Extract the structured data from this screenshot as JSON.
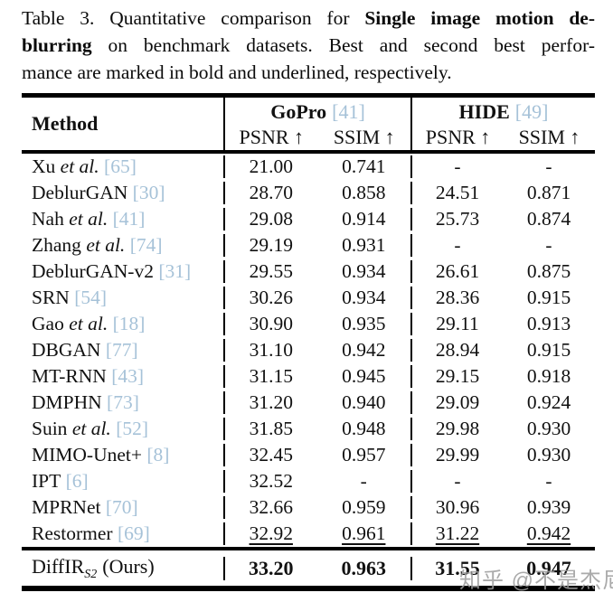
{
  "caption": {
    "line1_regular": "Table 3. Quantitative comparison for ",
    "line1_bold": "Single image motion de-",
    "line2_bold": "blurring",
    "line2_regular": " on benchmark datasets. Best and second best perfor-",
    "line3": "mance are marked in bold and underlined, respectively."
  },
  "colors": {
    "citation_blue": "#a6c2d8",
    "rule_black": "#000000",
    "watermark_gray": "#9b9b9b"
  },
  "table": {
    "method_label": "Method",
    "groups": [
      {
        "name": "GoPro",
        "cite": "[41]",
        "metrics": [
          "PSNR ↑",
          "SSIM ↑"
        ]
      },
      {
        "name": "HIDE",
        "cite": "[49]",
        "metrics": [
          "PSNR ↑",
          "SSIM ↑"
        ]
      }
    ],
    "rows": [
      {
        "name": "Xu",
        "etal": "et al.",
        "cite": "[65]",
        "values": [
          "21.00",
          "0.741",
          "-",
          "-"
        ],
        "underline": false
      },
      {
        "name": "DeblurGAN",
        "etal": "",
        "cite": "[30]",
        "values": [
          "28.70",
          "0.858",
          "24.51",
          "0.871"
        ],
        "underline": false
      },
      {
        "name": "Nah",
        "etal": "et al.",
        "cite": "[41]",
        "values": [
          "29.08",
          "0.914",
          "25.73",
          "0.874"
        ],
        "underline": false
      },
      {
        "name": "Zhang",
        "etal": "et al.",
        "cite": "[74]",
        "values": [
          "29.19",
          "0.931",
          "-",
          "-"
        ],
        "underline": false
      },
      {
        "name": "DeblurGAN-v2",
        "etal": "",
        "cite": "[31]",
        "values": [
          "29.55",
          "0.934",
          "26.61",
          "0.875"
        ],
        "underline": false
      },
      {
        "name": "SRN",
        "etal": "",
        "cite": "[54]",
        "values": [
          "30.26",
          "0.934",
          "28.36",
          "0.915"
        ],
        "underline": false
      },
      {
        "name": "Gao",
        "etal": "et al.",
        "cite": "[18]",
        "values": [
          "30.90",
          "0.935",
          "29.11",
          "0.913"
        ],
        "underline": false
      },
      {
        "name": "DBGAN",
        "etal": "",
        "cite": "[77]",
        "values": [
          "31.10",
          "0.942",
          "28.94",
          "0.915"
        ],
        "underline": false
      },
      {
        "name": "MT-RNN",
        "etal": "",
        "cite": "[43]",
        "values": [
          "31.15",
          "0.945",
          "29.15",
          "0.918"
        ],
        "underline": false
      },
      {
        "name": "DMPHN",
        "etal": "",
        "cite": "[73]",
        "values": [
          "31.20",
          "0.940",
          "29.09",
          "0.924"
        ],
        "underline": false
      },
      {
        "name": "Suin",
        "etal": "et al.",
        "cite": "[52]",
        "values": [
          "31.85",
          "0.948",
          "29.98",
          "0.930"
        ],
        "underline": false
      },
      {
        "name": "MIMO-Unet+",
        "etal": "",
        "cite": "[8]",
        "values": [
          "32.45",
          "0.957",
          "29.99",
          "0.930"
        ],
        "underline": false
      },
      {
        "name": "IPT",
        "etal": "",
        "cite": "[6]",
        "values": [
          "32.52",
          "-",
          "-",
          "-"
        ],
        "underline": false
      },
      {
        "name": "MPRNet",
        "etal": "",
        "cite": "[70]",
        "values": [
          "32.66",
          "0.959",
          "30.96",
          "0.939"
        ],
        "underline": false
      },
      {
        "name": "Restormer",
        "etal": "",
        "cite": "[69]",
        "values": [
          "32.92",
          "0.961",
          "31.22",
          "0.942"
        ],
        "underline": true
      }
    ],
    "final_row": {
      "name": "DiffIR",
      "sub": "S2",
      "suffix": "(Ours)",
      "values": [
        "33.20",
        "0.963",
        "31.55",
        "0.947"
      ]
    }
  },
  "watermark": "知乎 @不是杰尼"
}
